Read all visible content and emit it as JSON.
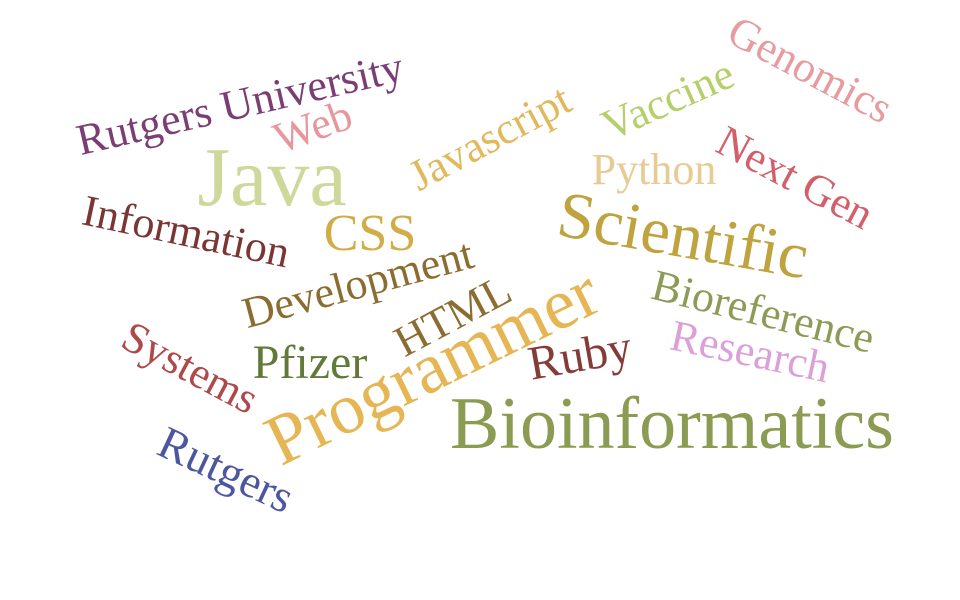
{
  "words": {
    "bioinformatics": {
      "text": "Bioinformatics",
      "color": "#8b9c52"
    },
    "programmer": {
      "text": "Programmer",
      "color": "#e6b655"
    },
    "scientific": {
      "text": "Scientific",
      "color": "#bfa33f"
    },
    "java": {
      "text": "Java",
      "color": "#cfd89b"
    },
    "rutgers_university": {
      "text": "Rutgers University",
      "color": "#7b3e74"
    },
    "genomics": {
      "text": "Genomics",
      "color": "#e79b9f"
    },
    "information": {
      "text": "Information",
      "color": "#7b3535"
    },
    "next_gen": {
      "text": "Next Gen",
      "color": "#d35f6a"
    },
    "bioreference": {
      "text": "Bioreference",
      "color": "#8d9b56"
    },
    "development": {
      "text": "Development",
      "color": "#8c6d31"
    },
    "javascript": {
      "text": "Javascript",
      "color": "#e1b95c"
    },
    "research": {
      "text": "Research",
      "color": "#dca0d9"
    },
    "rutgers": {
      "text": "Rutgers",
      "color": "#4c57a0"
    },
    "systems": {
      "text": "Systems",
      "color": "#ad494a"
    },
    "pfizer": {
      "text": "Pfizer",
      "color": "#637939"
    },
    "vaccine": {
      "text": "Vaccine",
      "color": "#b5cf6b"
    },
    "python": {
      "text": "Python",
      "color": "#e7cb94"
    },
    "html": {
      "text": "HTML",
      "color": "#8c6d31"
    },
    "ruby": {
      "text": "Ruby",
      "color": "#843c39"
    },
    "css": {
      "text": "CSS",
      "color": "#d2ad47"
    },
    "web": {
      "text": "Web",
      "color": "#e7969c"
    }
  }
}
